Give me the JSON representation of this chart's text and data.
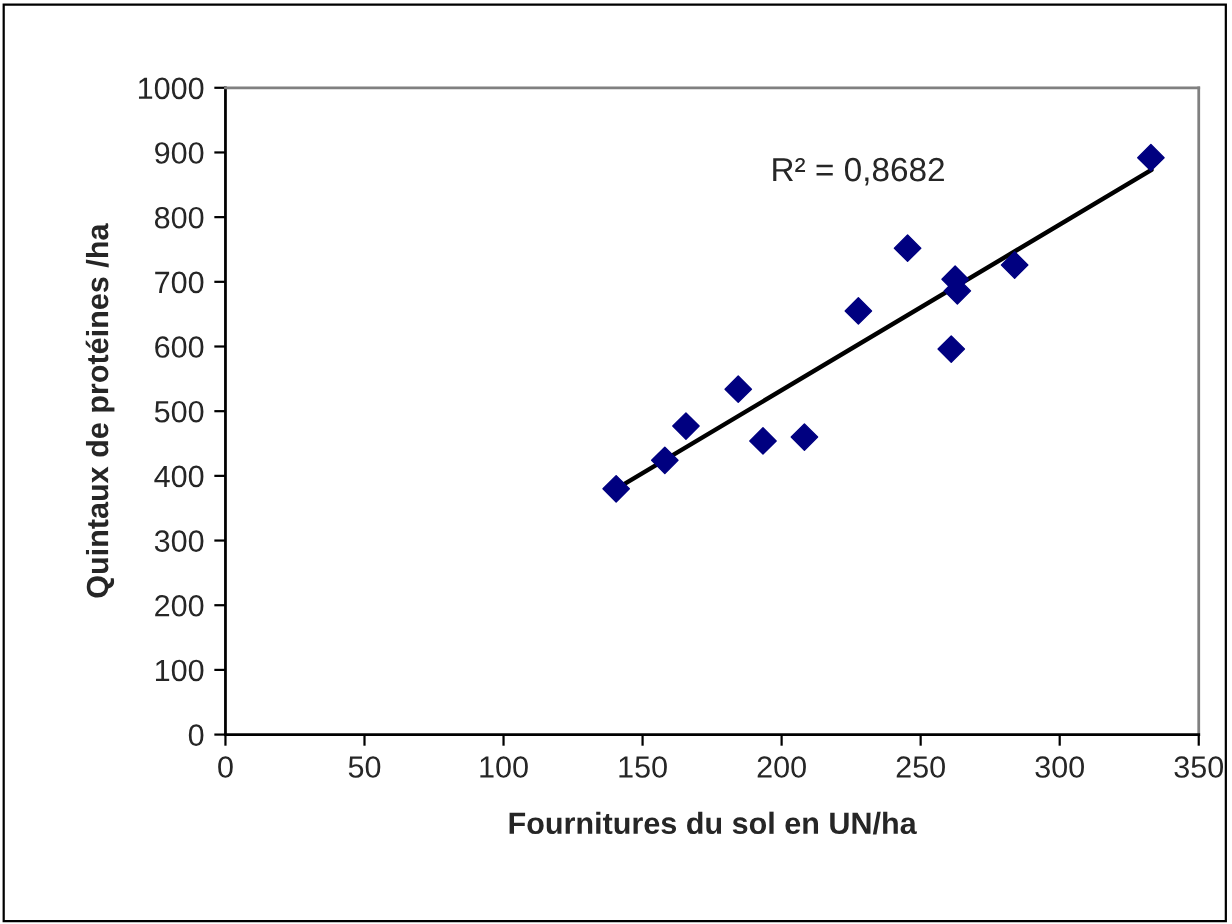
{
  "chart_data": {
    "type": "scatter",
    "xlabel": "Fournitures du sol en UN/ha",
    "ylabel": "Quintaux de protéines /ha",
    "xlim": [
      0,
      350
    ],
    "xticks": [
      0,
      50,
      100,
      150,
      200,
      250,
      300,
      350
    ],
    "ylim": [
      0,
      1000
    ],
    "yticks": [
      0,
      100,
      200,
      300,
      400,
      500,
      600,
      700,
      800,
      900,
      1000
    ],
    "grid": false,
    "series": [
      {
        "marker": "diamond",
        "color": "#000080",
        "x": [
          140.5,
          158,
          165.6,
          184.4,
          193.3,
          208.2,
          227.6,
          245.3,
          262.4,
          263.2,
          261,
          283.8,
          332.8
        ],
        "values": [
          380,
          424,
          477,
          534,
          454,
          460,
          655,
          752,
          704,
          686,
          596,
          726,
          892
        ]
      },
      {
        "type": "line",
        "color": "#000000",
        "x": [
          140.5,
          333
        ],
        "values": [
          380,
          873
        ]
      }
    ],
    "annotations": [
      "R² = 0,8682"
    ]
  }
}
